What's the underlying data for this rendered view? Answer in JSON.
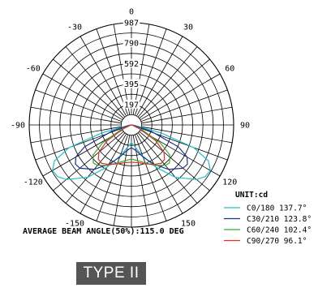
{
  "chart_data": {
    "type": "polar",
    "unit_label": "UNIT:cd",
    "radial_ticks": [
      "987",
      "790",
      "592",
      "395",
      "197"
    ],
    "radial_values": [
      987,
      790,
      592,
      395,
      197
    ],
    "rmax": 987,
    "angle_labels": [
      {
        "angle": 180,
        "text": "0"
      },
      {
        "angle": 150,
        "text": "-30"
      },
      {
        "angle": 210,
        "text": "30"
      },
      {
        "angle": 120,
        "text": "-60"
      },
      {
        "angle": 240,
        "text": "60"
      },
      {
        "angle": 90,
        "text": "-90"
      },
      {
        "angle": 270,
        "text": "90"
      },
      {
        "angle": 60,
        "text": "-120"
      },
      {
        "angle": 300,
        "text": "120"
      },
      {
        "angle": 30,
        "text": "-150"
      },
      {
        "angle": 330,
        "text": "150"
      }
    ],
    "series": [
      {
        "name": "C0/180 137.7°",
        "color": "#22c0c8",
        "points": [
          [
            -90,
            0
          ],
          [
            -80,
            40
          ],
          [
            -75,
            290
          ],
          [
            -70,
            640
          ],
          [
            -65,
            820
          ],
          [
            -60,
            880
          ],
          [
            -55,
            870
          ],
          [
            -50,
            820
          ],
          [
            -40,
            660
          ],
          [
            -30,
            470
          ],
          [
            -20,
            320
          ],
          [
            -10,
            220
          ],
          [
            0,
            170
          ],
          [
            10,
            220
          ],
          [
            20,
            320
          ],
          [
            30,
            470
          ],
          [
            40,
            660
          ],
          [
            50,
            820
          ],
          [
            55,
            870
          ],
          [
            60,
            880
          ],
          [
            65,
            820
          ],
          [
            70,
            640
          ],
          [
            75,
            290
          ],
          [
            80,
            40
          ],
          [
            90,
            0
          ]
        ]
      },
      {
        "name": "C30/210 123.8°",
        "color": "#1f2f8f",
        "points": [
          [
            -90,
            0
          ],
          [
            -80,
            20
          ],
          [
            -72,
            200
          ],
          [
            -65,
            500
          ],
          [
            -60,
            620
          ],
          [
            -55,
            660
          ],
          [
            -50,
            650
          ],
          [
            -40,
            560
          ],
          [
            -30,
            440
          ],
          [
            -20,
            330
          ],
          [
            -10,
            250
          ],
          [
            0,
            220
          ],
          [
            10,
            250
          ],
          [
            20,
            330
          ],
          [
            30,
            440
          ],
          [
            40,
            560
          ],
          [
            50,
            650
          ],
          [
            55,
            660
          ],
          [
            60,
            620
          ],
          [
            65,
            500
          ],
          [
            72,
            200
          ],
          [
            80,
            20
          ],
          [
            90,
            0
          ]
        ]
      },
      {
        "name": "C60/240 102.4°",
        "color": "#3aaa35",
        "points": [
          [
            -90,
            0
          ],
          [
            -75,
            10
          ],
          [
            -65,
            120
          ],
          [
            -58,
            330
          ],
          [
            -52,
            470
          ],
          [
            -45,
            520
          ],
          [
            -40,
            510
          ],
          [
            -30,
            450
          ],
          [
            -20,
            390
          ],
          [
            -10,
            350
          ],
          [
            0,
            330
          ],
          [
            10,
            350
          ],
          [
            20,
            390
          ],
          [
            30,
            450
          ],
          [
            40,
            510
          ],
          [
            45,
            520
          ],
          [
            52,
            470
          ],
          [
            58,
            330
          ],
          [
            65,
            120
          ],
          [
            75,
            10
          ],
          [
            90,
            0
          ]
        ]
      },
      {
        "name": "C90/270 96.1°",
        "color": "#e0301e",
        "points": [
          [
            -90,
            0
          ],
          [
            -75,
            10
          ],
          [
            -65,
            80
          ],
          [
            -57,
            280
          ],
          [
            -50,
            410
          ],
          [
            -44,
            460
          ],
          [
            -38,
            470
          ],
          [
            -30,
            440
          ],
          [
            -20,
            400
          ],
          [
            -10,
            370
          ],
          [
            0,
            360
          ],
          [
            10,
            370
          ],
          [
            20,
            400
          ],
          [
            30,
            440
          ],
          [
            38,
            470
          ],
          [
            44,
            460
          ],
          [
            50,
            410
          ],
          [
            57,
            280
          ],
          [
            65,
            80
          ],
          [
            75,
            10
          ],
          [
            90,
            0
          ]
        ]
      }
    ]
  },
  "beam_angle_text": "AVERAGE BEAM ANGLE(50%):115.0 DEG",
  "type_badge": "TYPE II"
}
